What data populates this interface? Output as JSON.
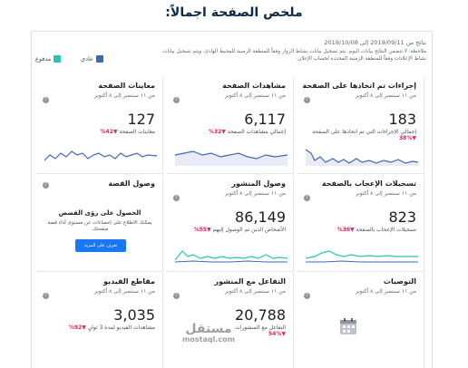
{
  "page_title": "ملخص الصفحة اجمالاً:",
  "header": {
    "range": "نتائج من 2019/09/11 إلى 2019/10/08",
    "note": "ملاحظة: لا تتضمن النتائج بيانات اليوم. يتم تسجيل بيانات نشاط الزوار وفقاً للمنطقة الزمنية للمحيط الهادئ، ويتم تسجيل بيانات نشاط الإعلانات وفقاً للمنطقة الزمنية المحددة لحساب الإعلان."
  },
  "legend": [
    {
      "label": "عادي",
      "color": "#4267b2"
    },
    {
      "label": "مدفوع",
      "color": "#28c3b4"
    }
  ],
  "date_range_label": "من ١١ سبتمبر إلى ٨ أكتوبر",
  "cards": {
    "actions": {
      "title": "إجراءات تم اتخاذها على الصفحة",
      "value": "183",
      "desc": "إجمالي الإجراءات التي تم اتخاذها على الصفحة",
      "change": "38%"
    },
    "page_views": {
      "title": "مشاهدات الصفحة",
      "value": "6,117",
      "desc": "إجمالي مشاهدات الصفحة",
      "change": "32%"
    },
    "previews": {
      "title": "معاينات الصفحة",
      "value": "127",
      "desc": "معاينات الصفحة",
      "change": "42%"
    },
    "likes": {
      "title": "تسجيلات الإعجاب بالصفحة",
      "value": "823",
      "desc": "تسجيلات الإعجاب بالصفحة",
      "change": "36%"
    },
    "reach": {
      "title": "وصول المنشور",
      "value": "86,149",
      "desc": "الأشخاص الذين تم الوصول إليهم",
      "change": "55%"
    },
    "story": {
      "title": "وصول القصة",
      "head": "الحصول على رؤى القصص",
      "text": "يمكنك الاطلاع على إحصاءات عن مستوى أداء قصة صفحتك.",
      "button": "تعرف على المزيد"
    },
    "recommendations": {
      "title": "التوصيات"
    },
    "engagement": {
      "title": "التفاعل مع المنشور",
      "value": "20,788",
      "desc": "التفاعل مع المنشورات",
      "change": "54%"
    },
    "videos": {
      "title": "مقاطع الفيديو",
      "value": "3,035",
      "desc": "مشاهدات الفيديو لمدة 3 ثوانٍ",
      "change": "92%"
    }
  },
  "icons": {
    "info": "info-icon",
    "calendar": "calendar-icon",
    "change_arrow": "down-arrow-icon"
  },
  "watermark": {
    "ar": "مستقل",
    "en": "mostaql.com"
  }
}
